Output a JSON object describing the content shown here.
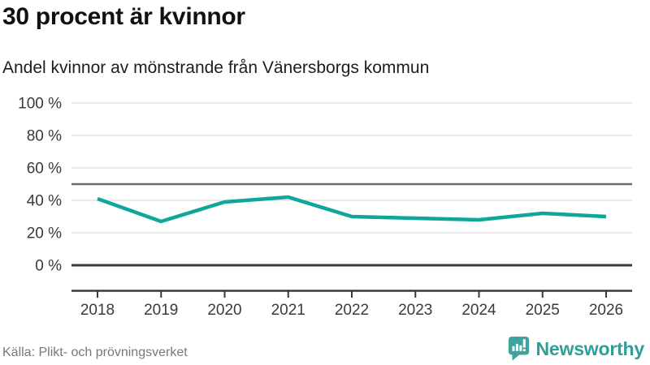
{
  "header": {
    "title": "30 procent är kvinnor",
    "subtitle": "Andel kvinnor av mönstrande från Vänersborgs kommun"
  },
  "chart_data": {
    "type": "line",
    "title": "30 procent är kvinnor",
    "subtitle": "Andel kvinnor av mönstrande från Vänersborgs kommun",
    "x": [
      2018,
      2019,
      2020,
      2021,
      2022,
      2023,
      2024,
      2025,
      2026
    ],
    "series": [
      {
        "name": "Andel kvinnor av mönstrande, Vänersborgs kommun",
        "values": [
          41,
          27,
          39,
          42,
          30,
          29,
          28,
          32,
          30
        ]
      }
    ],
    "unit": "%",
    "ylim": [
      0,
      100
    ],
    "y_ticks": [
      0,
      20,
      40,
      60,
      80,
      100
    ],
    "y_tick_suffix": " %",
    "reference_line": 50,
    "grid": "horizontal",
    "legend": "none",
    "xlabel": "",
    "ylabel": ""
  },
  "footer": {
    "source": "Källa: Plikt- och prövningsverket",
    "logo_text": "Newsworthy"
  },
  "colors": {
    "line": "#0fa69b",
    "logo": "#2f9e99",
    "grid_light": "#e4e4e4",
    "grid_dark": "#6e6e6e",
    "zero_line": "#3a3a3a",
    "axis_text": "#3a3a3a",
    "source_text": "#787878"
  }
}
